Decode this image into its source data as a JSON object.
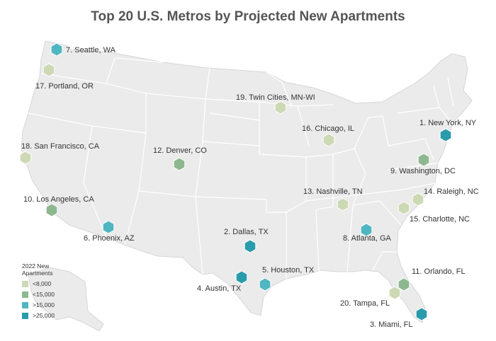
{
  "title": "Top 20 U.S. Metros by Projected New Apartments",
  "legend": {
    "title_line1": "2022 New",
    "title_line2": "Apartments",
    "items": [
      {
        "label": "<8,000",
        "color": "#cdd9b4"
      },
      {
        "label": "<15,000",
        "color": "#8db88f"
      },
      {
        "label": ">15,000",
        "color": "#4fb6c2"
      },
      {
        "label": ">25,000",
        "color": "#2a9bab"
      }
    ]
  },
  "metros": [
    {
      "label": "1. New York, NY",
      "tier": 3
    },
    {
      "label": "2. Dallas, TX",
      "tier": 3
    },
    {
      "label": "3. Miami, FL",
      "tier": 3
    },
    {
      "label": "4. Austin, TX",
      "tier": 3
    },
    {
      "label": "5. Houston, TX",
      "tier": 2
    },
    {
      "label": "6. Phoenix, AZ",
      "tier": 2
    },
    {
      "label": "7. Seattle, WA",
      "tier": 2
    },
    {
      "label": "8. Atlanta, GA",
      "tier": 2
    },
    {
      "label": "9. Washington, DC",
      "tier": 1
    },
    {
      "label": "10. Los Angeles, CA",
      "tier": 1
    },
    {
      "label": "11. Orlando, FL",
      "tier": 1
    },
    {
      "label": "12. Denver, CO",
      "tier": 1
    },
    {
      "label": "13. Nashville, TN",
      "tier": 0
    },
    {
      "label": "14. Raleigh, NC",
      "tier": 0
    },
    {
      "label": "15. Charlotte, NC",
      "tier": 0
    },
    {
      "label": "16. Chicago, IL",
      "tier": 0
    },
    {
      "label": "17. Portland, OR",
      "tier": 0
    },
    {
      "label": "18. San Francisco, CA",
      "tier": 0
    },
    {
      "label": "19. Twin Cities, MN-WI",
      "tier": 0
    },
    {
      "label": "20. Tampa, FL",
      "tier": 0
    }
  ]
}
